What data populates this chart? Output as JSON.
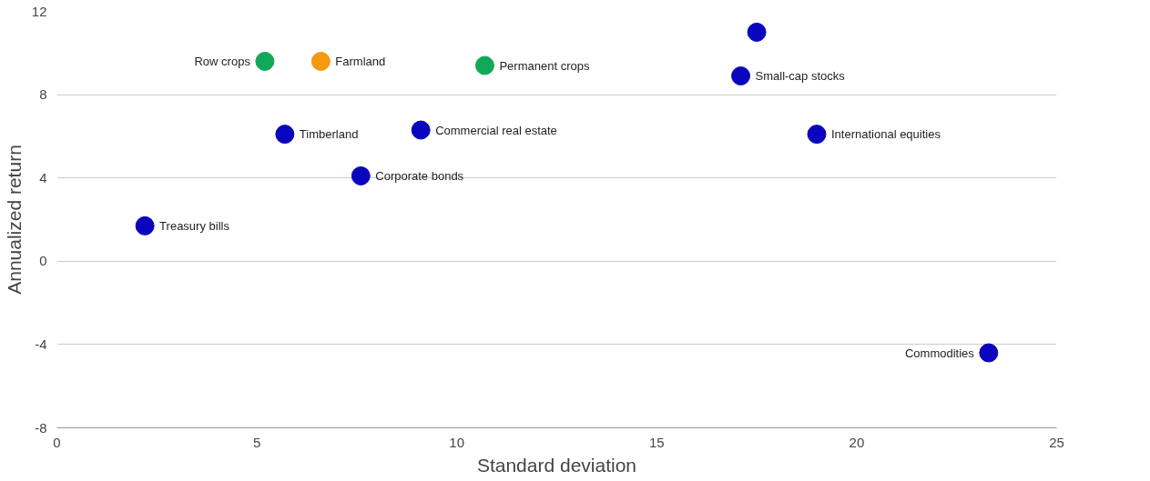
{
  "chart_data": {
    "type": "scatter",
    "xlabel": "Standard deviation",
    "ylabel": "Annualized return",
    "x": [
      5.2,
      6.6,
      10.7,
      17.5,
      17.1,
      5.7,
      9.1,
      19.0,
      7.6,
      2.2,
      23.3
    ],
    "values": [
      9.6,
      9.6,
      9.4,
      11.0,
      8.9,
      6.1,
      6.3,
      6.1,
      4.1,
      1.7,
      -4.4
    ],
    "colors": [
      "#12a85a",
      "#f5990f",
      "#12a85a",
      "#0a06bd",
      "#0a06bd",
      "#0a06bd",
      "#0a06bd",
      "#0a06bd",
      "#0a06bd",
      "#0a06bd",
      "#0a06bd"
    ],
    "annotations": [
      {
        "text": "Row crops",
        "x": 5.2,
        "y": 9.6
      },
      {
        "text": "Farmland",
        "x": 6.6,
        "y": 9.6
      },
      {
        "text": "Permanent crops",
        "x": 10.7,
        "y": 9.4
      },
      {
        "text": "Small-cap stocks",
        "x": 17.1,
        "y": 8.9
      },
      {
        "text": "Timberland",
        "x": 5.7,
        "y": 6.1
      },
      {
        "text": "Commercial real estate",
        "x": 9.1,
        "y": 6.3
      },
      {
        "text": "International equities",
        "x": 19.0,
        "y": 6.1
      },
      {
        "text": "Corporate bonds",
        "x": 7.6,
        "y": 4.1
      },
      {
        "text": "Treasury bills",
        "x": 2.2,
        "y": 1.7
      },
      {
        "text": "Commodities",
        "x": 23.3,
        "y": -4.4
      }
    ],
    "xlim": [
      0,
      25
    ],
    "xticks": [
      0,
      5,
      10,
      15,
      20,
      25
    ],
    "ylim": [
      -8,
      12
    ],
    "yticks": [
      -8,
      -4,
      0,
      4,
      8,
      12
    ],
    "grid": "y",
    "marker": "circle"
  }
}
